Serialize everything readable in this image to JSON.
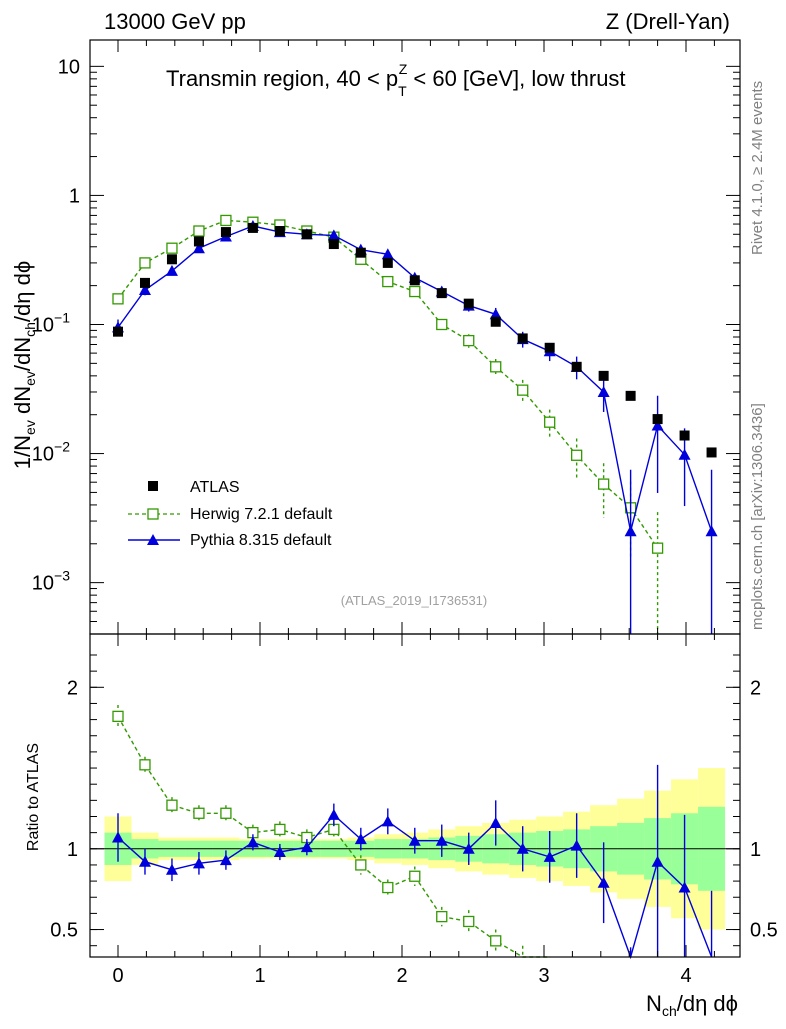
{
  "header": {
    "left": "13000 GeV pp",
    "right": "Z (Drell-Yan)",
    "side_top": "Rivet 4.1.0, ≥ 2.4M events",
    "side_bottom": "mcplots.cern.ch [arXiv:1306.3436]",
    "analysis_ref": "(ATLAS_2019_I1736531)"
  },
  "chart_data": {
    "type": "scatter",
    "title_parts": {
      "pre": "Transmin region, 40 < p",
      "sub": "T",
      "sup": "Z",
      "post": " < 60 [GeV], low thrust"
    },
    "xlabel": "N_ch/dη dϕ",
    "ylabel_main": "1/N_ev dN_ev/dN_ch/dη dϕ",
    "ylabel_ratio": "Ratio to ATLAS",
    "xlim": [
      -0.2,
      4.35
    ],
    "ylim_main": [
      0.0004,
      16
    ],
    "ylim_ratio": [
      0.33,
      2.33
    ],
    "x_ticks": [
      "0",
      "1",
      "2",
      "3",
      "4"
    ],
    "y_ticks_main": [
      {
        "value": 10,
        "base": "10",
        "exp": ""
      },
      {
        "value": 1,
        "base": "1",
        "exp": ""
      },
      {
        "value": 0.1,
        "base": "10",
        "exp": "−1"
      },
      {
        "value": 0.01,
        "base": "10",
        "exp": "−2"
      },
      {
        "value": 0.001,
        "base": "10",
        "exp": "−3"
      }
    ],
    "y_ticks_ratio": [
      "2",
      "1",
      "0.5"
    ],
    "x": [
      0,
      0.19,
      0.38,
      0.57,
      0.76,
      0.95,
      1.14,
      1.33,
      1.52,
      1.71,
      1.9,
      2.09,
      2.28,
      2.47,
      2.66,
      2.85,
      3.04,
      3.23,
      3.42,
      3.61,
      3.8,
      3.99,
      4.18
    ],
    "series": [
      {
        "name": "ATLAS",
        "color": "#000000",
        "marker": "filled-square",
        "values": [
          0.088,
          0.21,
          0.32,
          0.44,
          0.52,
          0.56,
          0.53,
          0.5,
          0.42,
          0.36,
          0.3,
          0.22,
          0.175,
          0.145,
          0.105,
          0.078,
          0.066,
          0.047,
          0.04,
          0.028,
          0.0185,
          0.0138,
          0.0102
        ]
      },
      {
        "name": "Herwig 7.2.1 default",
        "color": "#339900",
        "marker": "open-square",
        "values": [
          0.158,
          0.3,
          0.39,
          0.53,
          0.64,
          0.62,
          0.59,
          0.53,
          0.475,
          0.32,
          0.215,
          0.18,
          0.1,
          0.075,
          0.047,
          0.031,
          0.0175,
          0.0097,
          0.0058,
          0.0038,
          0.00185,
          null,
          null
        ],
        "errors_frac": [
          0.07,
          0.05,
          0.05,
          0.05,
          0.05,
          0.05,
          0.05,
          0.05,
          0.05,
          0.06,
          0.06,
          0.06,
          0.1,
          0.12,
          0.15,
          0.2,
          0.25,
          0.35,
          0.45,
          0.6,
          0.9,
          null,
          null
        ]
      },
      {
        "name": "Pythia 8.315 default",
        "color": "#0000dd",
        "marker": "filled-triangle",
        "values": [
          0.095,
          0.185,
          0.26,
          0.39,
          0.48,
          0.58,
          0.52,
          0.5,
          0.49,
          0.38,
          0.35,
          0.23,
          0.18,
          0.14,
          0.12,
          0.077,
          0.062,
          0.047,
          0.03,
          0.0025,
          0.0165,
          0.0098,
          0.0025
        ],
        "errors_frac": [
          0.15,
          0.09,
          0.08,
          0.07,
          0.06,
          0.05,
          0.05,
          0.05,
          0.06,
          0.07,
          0.08,
          0.08,
          0.09,
          0.1,
          0.12,
          0.14,
          0.16,
          0.2,
          0.3,
          2.0,
          0.7,
          0.6,
          2.0
        ]
      }
    ],
    "ratio": {
      "herwig": [
        1.82,
        1.52,
        1.27,
        1.22,
        1.22,
        1.1,
        1.12,
        1.07,
        1.12,
        0.9,
        0.76,
        0.83,
        0.58,
        0.55,
        0.43,
        0.3,
        0.18,
        null,
        null,
        null,
        null,
        null,
        null
      ],
      "herwig_err": [
        0.07,
        0.05,
        0.05,
        0.05,
        0.05,
        0.05,
        0.05,
        0.05,
        0.05,
        0.06,
        0.05,
        0.06,
        0.06,
        0.07,
        0.07,
        0.1,
        0.1,
        null,
        null,
        null,
        null,
        null,
        null
      ],
      "pythia": [
        1.07,
        0.92,
        0.87,
        0.91,
        0.93,
        1.04,
        0.98,
        1.01,
        1.21,
        1.06,
        1.17,
        1.05,
        1.05,
        1.0,
        1.16,
        1.0,
        0.95,
        1.02,
        0.79,
        0.09,
        0.92,
        0.76,
        0.24
      ],
      "pythia_err": [
        0.15,
        0.08,
        0.07,
        0.07,
        0.06,
        0.05,
        0.05,
        0.05,
        0.07,
        0.07,
        0.08,
        0.08,
        0.1,
        0.1,
        0.14,
        0.14,
        0.16,
        0.2,
        0.25,
        0.3,
        0.6,
        0.45,
        0.5
      ],
      "band_stat": [
        0.1,
        0.06,
        0.05,
        0.05,
        0.05,
        0.05,
        0.05,
        0.05,
        0.05,
        0.05,
        0.06,
        0.06,
        0.07,
        0.08,
        0.09,
        0.1,
        0.11,
        0.12,
        0.14,
        0.16,
        0.19,
        0.22,
        0.26
      ],
      "band_tot": [
        0.2,
        0.1,
        0.07,
        0.07,
        0.07,
        0.06,
        0.06,
        0.06,
        0.06,
        0.07,
        0.09,
        0.1,
        0.12,
        0.14,
        0.16,
        0.18,
        0.2,
        0.23,
        0.27,
        0.31,
        0.36,
        0.43,
        0.5
      ]
    }
  }
}
